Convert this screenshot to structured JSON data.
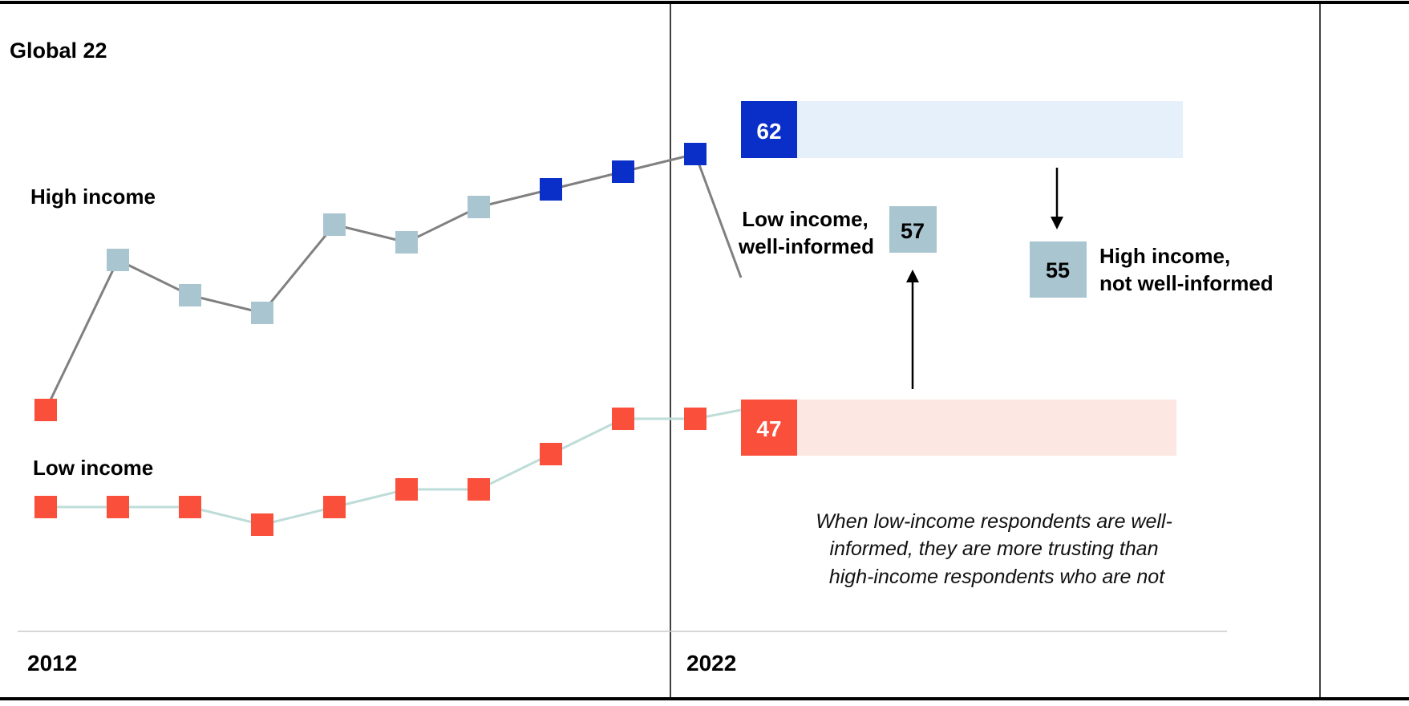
{
  "chart_data": {
    "type": "line",
    "title": "Global 22",
    "x_start_label": "2012",
    "x_end_label": "2022",
    "series": [
      {
        "name": "High income",
        "values": [
          47,
          64,
          60,
          58,
          68,
          66,
          70,
          72,
          74,
          76
        ],
        "point_colors": [
          "#f94f3b",
          "#a9c5cf",
          "#a9c5cf",
          "#a9c5cf",
          "#a9c5cf",
          "#a9c5cf",
          "#a9c5cf",
          "#0a2ec8",
          "#0a2ec8",
          "#0a2ec8"
        ],
        "line_color": "#808080",
        "final": {
          "value": 62,
          "label": "62",
          "badge_color": "#0a2ec8",
          "bar_color": "#e6f0fb"
        }
      },
      {
        "name": "Low income",
        "values": [
          36,
          36,
          36,
          34,
          36,
          38,
          38,
          42,
          46,
          46
        ],
        "point_colors": [
          "#f94f3b",
          "#f94f3b",
          "#f94f3b",
          "#f94f3b",
          "#f94f3b",
          "#f94f3b",
          "#f94f3b",
          "#f94f3b",
          "#f94f3b",
          "#f94f3b"
        ],
        "line_color": "#bedcd8",
        "final": {
          "value": 47,
          "label": "47",
          "badge_color": "#f94f3b",
          "bar_color": "#fde7e3"
        }
      }
    ],
    "callouts": [
      {
        "label_lines": [
          "Low income,",
          "well-informed"
        ],
        "value": "57",
        "color": "#a9c5cf"
      },
      {
        "label_lines": [
          "High income,",
          "not well-informed"
        ],
        "value": "55",
        "color": "#a9c5cf"
      }
    ],
    "note_lines": [
      "When low-income respondents are well-",
      "informed, they are more trusting than",
      "high-income respondents who are not"
    ]
  }
}
